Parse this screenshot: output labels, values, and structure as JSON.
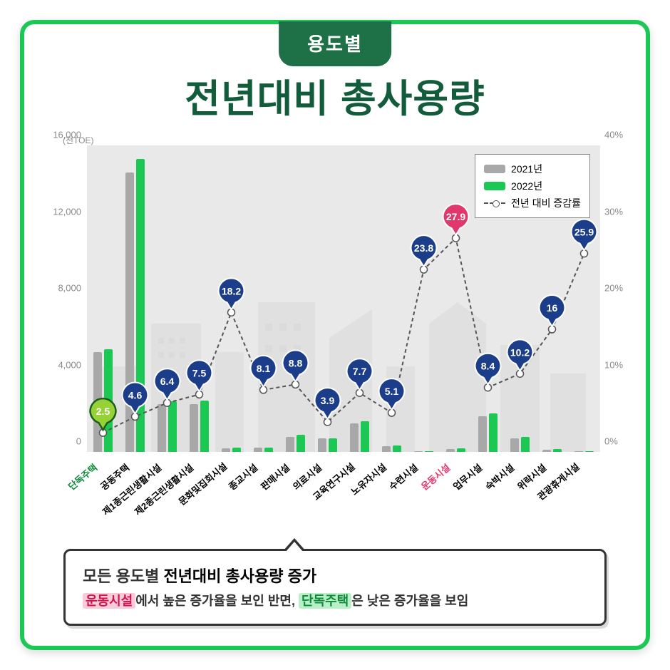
{
  "header": {
    "tab": "용도별",
    "title": "전년대비 총사용량"
  },
  "chart": {
    "type": "bar+line",
    "unit_left": "(천TOE)",
    "yticks_left": [
      0,
      4000,
      8000,
      12000,
      16000
    ],
    "ytick_left_labels": [
      "0",
      "4,000",
      "8,000",
      "12,000",
      "16,000"
    ],
    "yticks_right_labels": [
      "0%",
      "10%",
      "20%",
      "30%",
      "40%"
    ],
    "ylim_left": [
      0,
      16000
    ],
    "ylim_right": [
      0,
      40
    ],
    "background_color": "#e9e9e9",
    "bar_2021_color": "#a8a8a8",
    "bar_2022_color": "#1bc853",
    "line_color": "#555555",
    "pin_fill_default": "#1b3d8a",
    "pin_fill_highlight_pink": "#e0376c",
    "pin_fill_highlight_green": "#96d236",
    "legend": {
      "y2021": "2021년",
      "y2022": "2022년",
      "rate": "전년 대비 증감률"
    },
    "categories": [
      {
        "label": "단독주택",
        "color": "#0f8a3c",
        "v2021": 5200,
        "v2022": 5350,
        "rate": 2.5,
        "pin": "green"
      },
      {
        "label": "공동주택",
        "color": "#000",
        "v2021": 14600,
        "v2022": 15300,
        "rate": 4.6,
        "pin": "blue"
      },
      {
        "label": "제1종근린생활시설",
        "color": "#000",
        "v2021": 2500,
        "v2022": 2650,
        "rate": 6.4,
        "pin": "blue"
      },
      {
        "label": "제2종근린생활시설",
        "color": "#000",
        "v2021": 2500,
        "v2022": 2680,
        "rate": 7.5,
        "pin": "blue"
      },
      {
        "label": "문화및집회시설",
        "color": "#000",
        "v2021": 200,
        "v2022": 240,
        "rate": 18.2,
        "pin": "blue"
      },
      {
        "label": "종교시설",
        "color": "#000",
        "v2021": 220,
        "v2022": 240,
        "rate": 8.1,
        "pin": "blue"
      },
      {
        "label": "판매시설",
        "color": "#000",
        "v2021": 800,
        "v2022": 880,
        "rate": 8.8,
        "pin": "blue"
      },
      {
        "label": "의료시설",
        "color": "#000",
        "v2021": 700,
        "v2022": 720,
        "rate": 3.9,
        "pin": "blue"
      },
      {
        "label": "교육연구시설",
        "color": "#000",
        "v2021": 1500,
        "v2022": 1600,
        "rate": 7.7,
        "pin": "blue"
      },
      {
        "label": "노유자시설",
        "color": "#000",
        "v2021": 300,
        "v2022": 320,
        "rate": 5.1,
        "pin": "blue"
      },
      {
        "label": "수련시설",
        "color": "#000",
        "v2021": 30,
        "v2022": 40,
        "rate": 23.8,
        "pin": "blue"
      },
      {
        "label": "운동시설",
        "color": "#e0376c",
        "v2021": 160,
        "v2022": 200,
        "rate": 27.9,
        "pin": "pink"
      },
      {
        "label": "업무시설",
        "color": "#000",
        "v2021": 1850,
        "v2022": 2000,
        "rate": 8.4,
        "pin": "blue"
      },
      {
        "label": "숙박시설",
        "color": "#000",
        "v2021": 700,
        "v2022": 770,
        "rate": 10.2,
        "pin": "blue"
      },
      {
        "label": "위락시설",
        "color": "#000",
        "v2021": 120,
        "v2022": 140,
        "rate": 16.0,
        "pin": "blue"
      },
      {
        "label": "관광휴게시설",
        "color": "#000",
        "v2021": 40,
        "v2022": 50,
        "rate": 25.9,
        "pin": "blue"
      }
    ]
  },
  "caption": {
    "line1_prefix": "모든 용도별",
    "line1_em": " 전년대비 총사용량 증가",
    "pink_word": "운동시설",
    "mid1": "에서 높은 증가율을 보인 반면, ",
    "green_word": "단독주택",
    "tail": "은 낮은 증가율을 보임"
  }
}
